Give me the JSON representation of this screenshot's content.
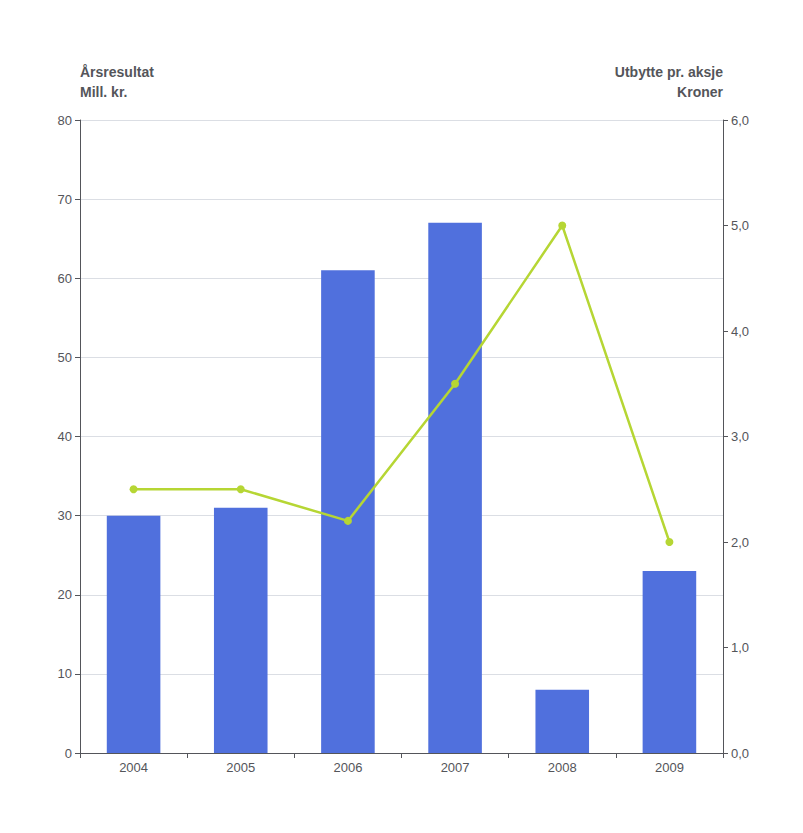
{
  "chart_data": {
    "type": "bar",
    "ylabel": [
      "Årsresultat",
      "Mill. kr."
    ],
    "y2label": [
      "Utbytte pr. aksje",
      "Kroner"
    ],
    "categories": [
      "2004",
      "2005",
      "2006",
      "2007",
      "2008",
      "2009"
    ],
    "series": [
      {
        "type": "bar",
        "values": [
          30,
          31,
          61,
          67,
          8,
          23
        ]
      },
      {
        "type": "line",
        "axis": "y2",
        "marker": "circle",
        "values": [
          2.5,
          2.5,
          2.2,
          3.5,
          5.0,
          2.0
        ]
      }
    ],
    "ylim": [
      0,
      80
    ],
    "yticks": [
      0,
      10,
      20,
      30,
      40,
      50,
      60,
      70,
      80
    ],
    "y2lim": [
      0,
      6
    ],
    "y2ticks": [
      {
        "value": 0,
        "label": "0,0"
      },
      {
        "value": 1,
        "label": "1,0"
      },
      {
        "value": 2,
        "label": "2,0"
      },
      {
        "value": 3,
        "label": "3,0"
      },
      {
        "value": 4,
        "label": "4,0"
      },
      {
        "value": 5,
        "label": "5,0"
      },
      {
        "value": 6,
        "label": "6,0"
      }
    ],
    "grid": true
  }
}
